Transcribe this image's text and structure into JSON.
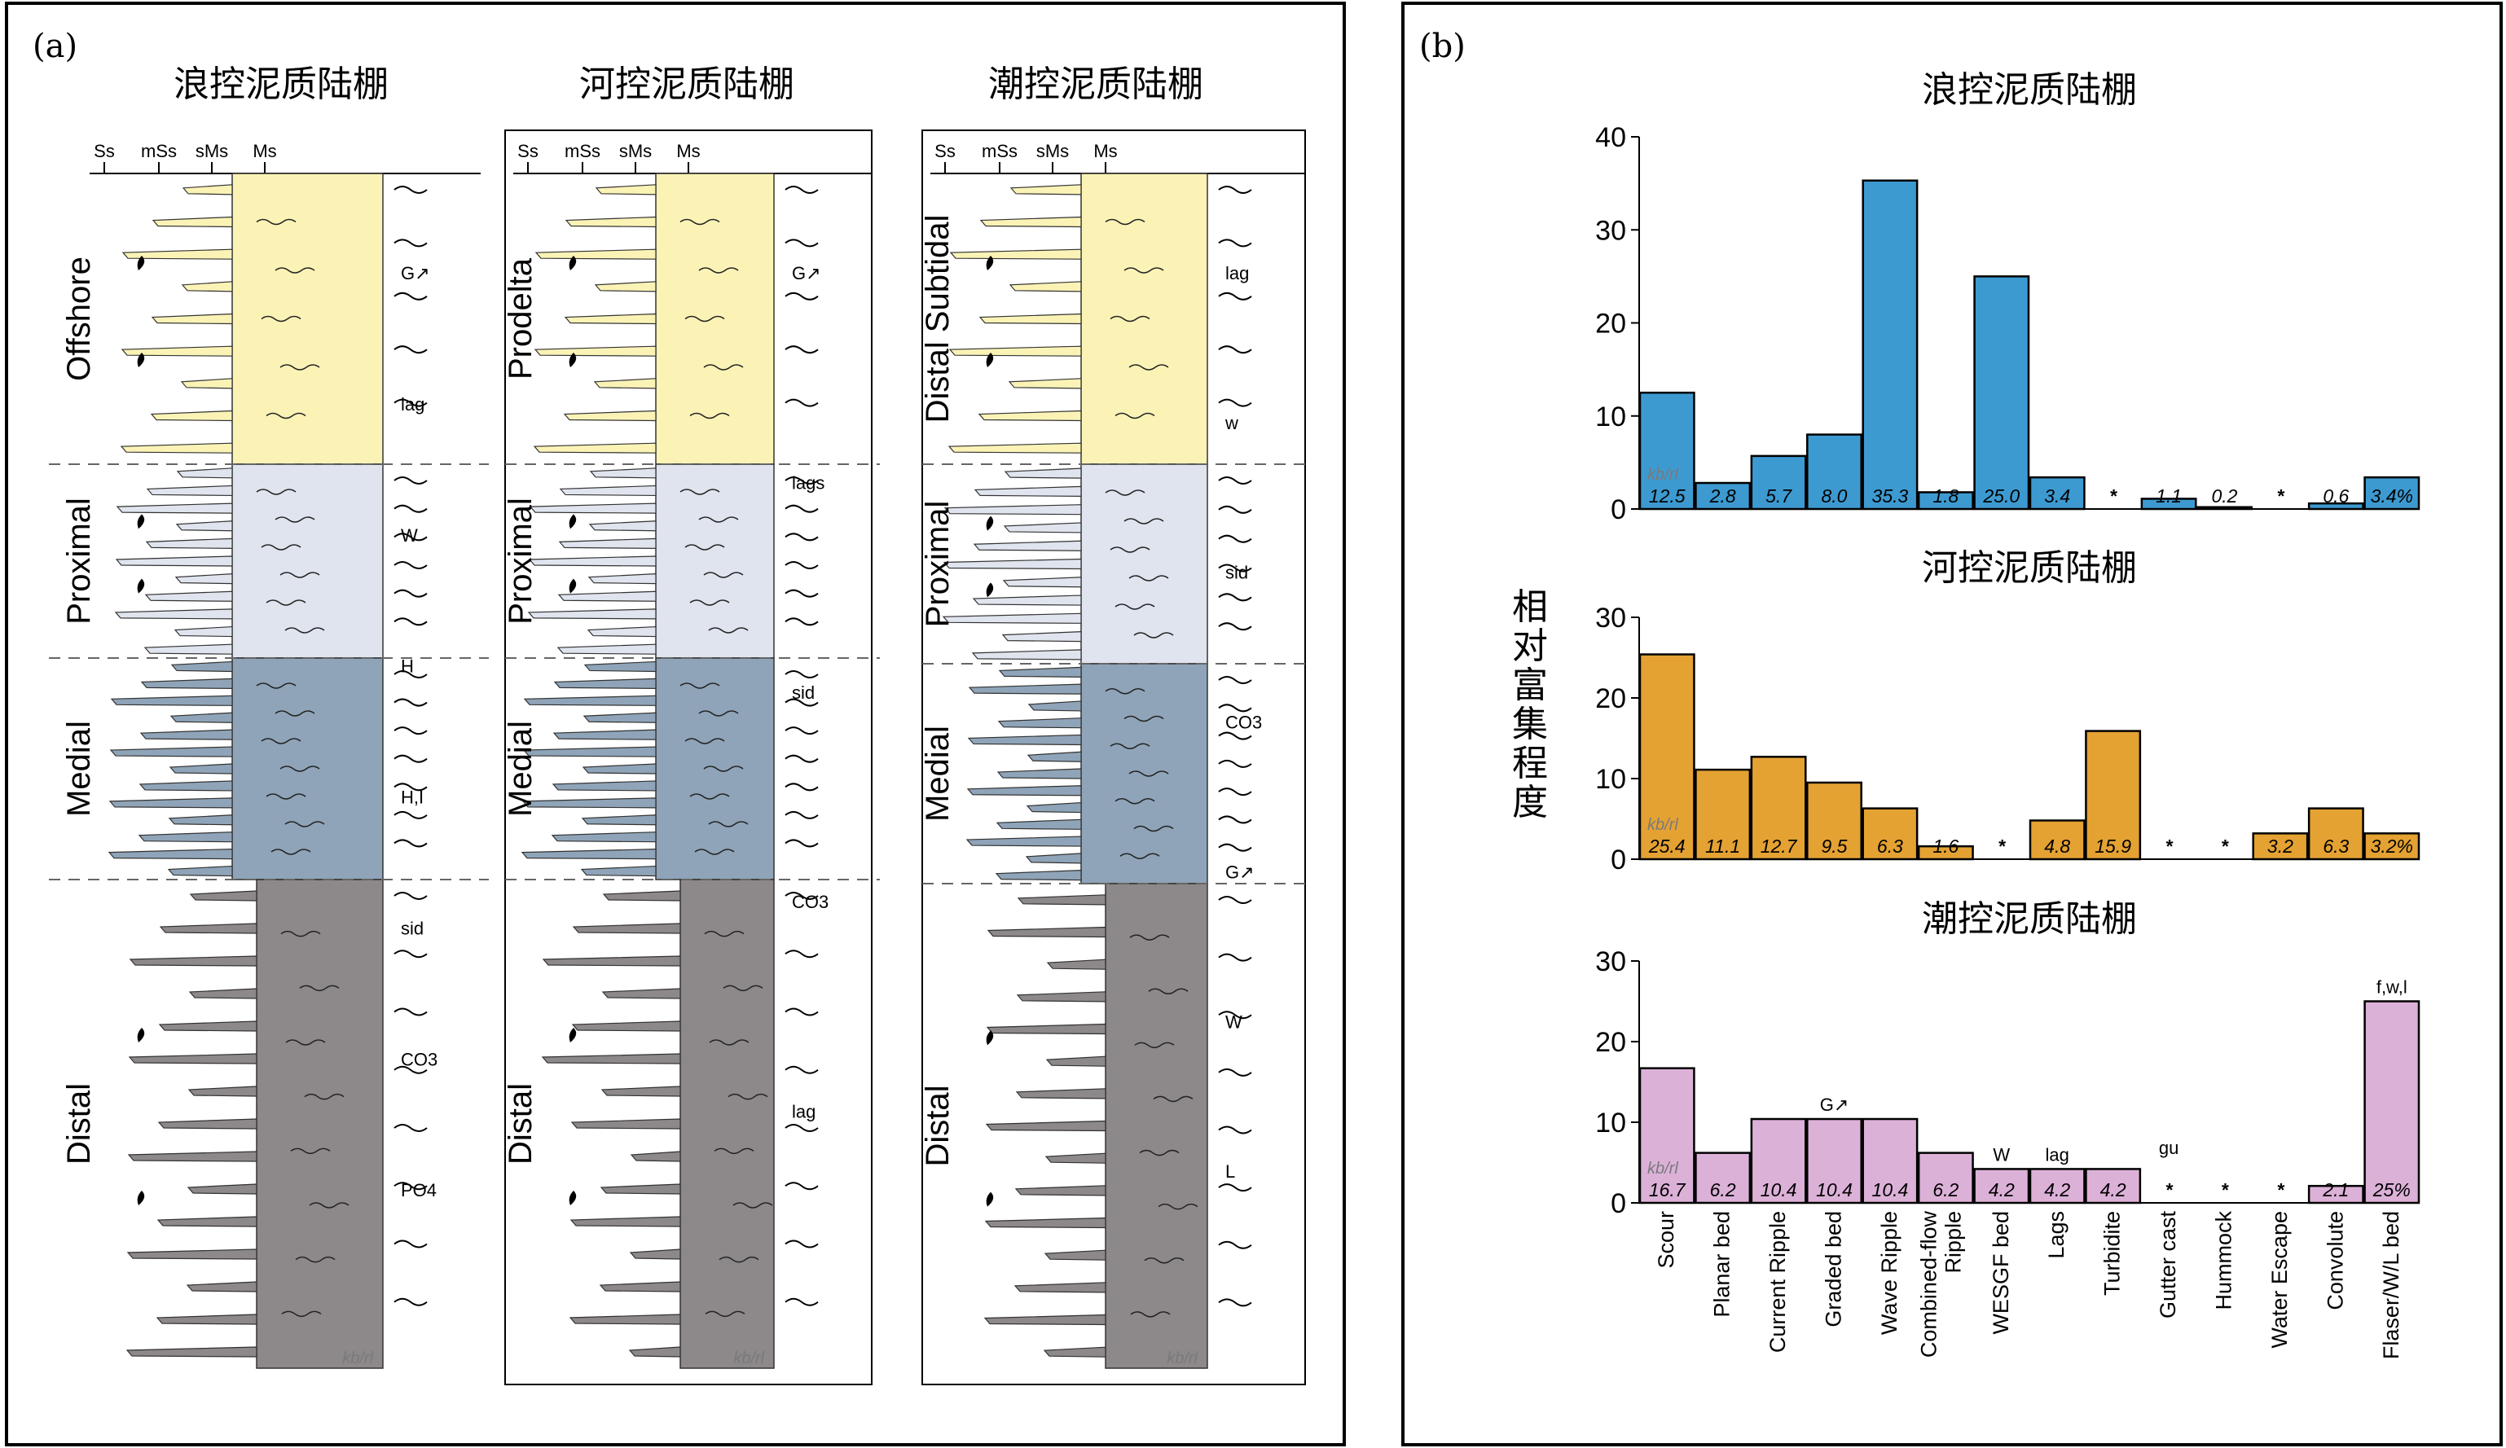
{
  "panel_a": {
    "label": "(a)",
    "x_ticks": [
      "Ss",
      "mSs",
      "sMs",
      "Ms"
    ],
    "kb_label": "kb/rl",
    "columns": [
      {
        "title": "浪控泥质陆棚",
        "zones": [
          "Offshore",
          "Proximal",
          "Medial",
          "Distal"
        ],
        "symbols": [
          "G↗",
          "lag",
          "W",
          "H",
          "H,I",
          "sid",
          "CO3",
          "PO4"
        ]
      },
      {
        "title": "河控泥质陆棚",
        "zones": [
          "Prodelta",
          "Proximal",
          "Medial",
          "Distal"
        ],
        "symbols": [
          "G↗",
          "lags",
          "sid",
          "CO3",
          "lag"
        ]
      },
      {
        "title": "潮控泥质陆棚",
        "zones": [
          "Distal Subtidal",
          "Proximal",
          "Medial",
          "Distal"
        ],
        "symbols": [
          "lag",
          "w",
          "sid",
          "CO3",
          "G↗",
          "W",
          "L"
        ]
      }
    ]
  },
  "panel_b": {
    "label": "(b)",
    "ylabel": "相对富集程度",
    "colors": {
      "wave": "#3d9ad1",
      "river": "#e4a233",
      "tide": "#dcb1d8"
    },
    "kb_label": "kb/rl"
  },
  "chart_data": [
    {
      "type": "bar",
      "title": "浪控泥质陆棚",
      "categories": [
        "Scour",
        "Planar bed",
        "Current Ripple",
        "Graded bed",
        "Wave Ripple",
        "Combined-flow Ripple",
        "WESGF bed",
        "Lags",
        "Turbidite",
        "Gutter cast",
        "Hummock",
        "Water Escape",
        "Convolute",
        "Flaser/W/L bed"
      ],
      "values": [
        12.5,
        2.8,
        5.7,
        8.0,
        35.3,
        1.8,
        25.0,
        3.4,
        null,
        1.1,
        0.2,
        null,
        0.6,
        3.4
      ],
      "value_labels": [
        "12.5",
        "2.8",
        "5.7",
        "8.0",
        "35.3",
        "1.8",
        "25.0",
        "3.4",
        "*",
        "1.1",
        "0.2",
        "*",
        "0.6",
        "3.4%"
      ],
      "ylim": [
        0,
        40
      ],
      "yticks": [
        "0",
        "10",
        "20",
        "30",
        "40"
      ],
      "color": "#3d9ad1"
    },
    {
      "type": "bar",
      "title": "河控泥质陆棚",
      "categories": [
        "Scour",
        "Planar bed",
        "Current Ripple",
        "Graded bed",
        "Wave Ripple",
        "Combined-flow Ripple",
        "WESGF bed",
        "Lags",
        "Turbidite",
        "Gutter cast",
        "Hummock",
        "Water Escape",
        "Convolute",
        "Flaser/W/L bed"
      ],
      "values": [
        25.4,
        11.1,
        12.7,
        9.5,
        6.3,
        1.6,
        null,
        4.8,
        15.9,
        null,
        null,
        3.2,
        6.3,
        3.2
      ],
      "value_labels": [
        "25.4",
        "11.1",
        "12.7",
        "9.5",
        "6.3",
        "1.6",
        "*",
        "4.8",
        "15.9",
        "*",
        "*",
        "3.2",
        "6.3",
        "3.2%"
      ],
      "ylim": [
        0,
        30
      ],
      "yticks": [
        "0",
        "10",
        "20",
        "30"
      ],
      "color": "#e4a233"
    },
    {
      "type": "bar",
      "title": "潮控泥质陆棚",
      "categories": [
        "Scour",
        "Planar bed",
        "Current Ripple",
        "Graded bed",
        "Wave Ripple",
        "Combined-flow Ripple",
        "WESGF bed",
        "Lags",
        "Turbidite",
        "Gutter cast",
        "Hummock",
        "Water Escape",
        "Convolute",
        "Flaser/W/L bed"
      ],
      "values": [
        16.7,
        6.2,
        10.4,
        10.4,
        10.4,
        6.2,
        4.2,
        4.2,
        4.2,
        null,
        null,
        null,
        2.1,
        25
      ],
      "value_labels": [
        "16.7",
        "6.2",
        "10.4",
        "10.4",
        "10.4",
        "6.2",
        "4.2",
        "4.2",
        "4.2",
        "*",
        "*",
        "*",
        "2.1",
        "25%"
      ],
      "ylim": [
        0,
        30
      ],
      "yticks": [
        "0",
        "10",
        "20",
        "30"
      ],
      "color": "#dcb1d8",
      "bar_symbols": {
        "Graded bed": "G↗",
        "WESGF bed": "W",
        "Lags": "lag",
        "Gutter cast": "gu",
        "Flaser/W/L bed": "f,w,l"
      }
    }
  ]
}
